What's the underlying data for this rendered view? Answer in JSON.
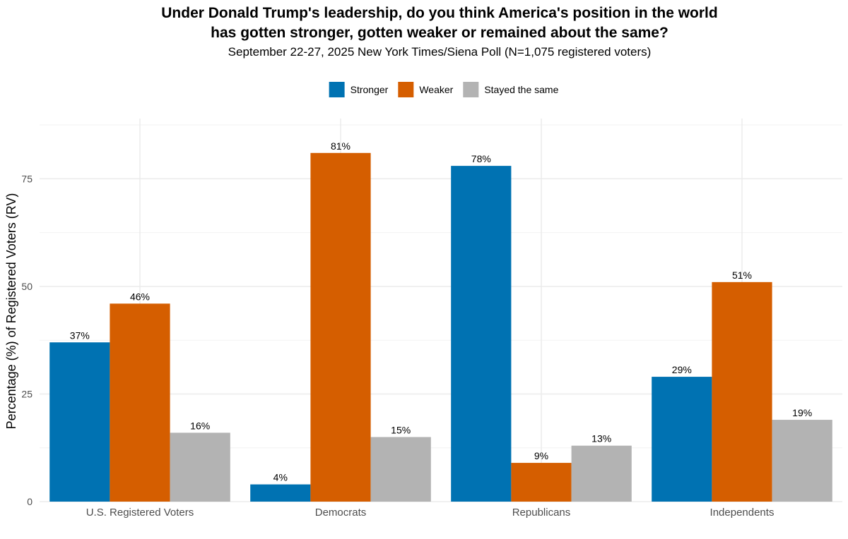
{
  "chart_data": {
    "type": "bar",
    "title_line1": "Under Donald Trump's leadership, do you think America's position in the world",
    "title_line2": "has gotten stronger, gotten weaker or remained about the same?",
    "subtitle": "September 22-27, 2025 New York Times/Siena Poll (N=1,075 registered voters)",
    "xlabel": "",
    "ylabel": "Percentage (%) of Registered Voters (RV)",
    "ylim": [
      0,
      89
    ],
    "yticks": [
      0,
      25,
      50,
      75
    ],
    "grid": true,
    "legend_position": "top",
    "categories": [
      "U.S. Registered Voters",
      "Democrats",
      "Republicans",
      "Independents"
    ],
    "series": [
      {
        "name": "Stronger",
        "color": "#0072B2",
        "values": [
          37,
          4,
          78,
          29
        ],
        "labels": [
          "37%",
          "4%",
          "78%",
          "29%"
        ]
      },
      {
        "name": "Weaker",
        "color": "#D55E00",
        "values": [
          46,
          81,
          9,
          51
        ],
        "labels": [
          "46%",
          "81%",
          "9%",
          "51%"
        ]
      },
      {
        "name": "Stayed the same",
        "color": "#B3B3B3",
        "values": [
          16,
          15,
          13,
          19
        ],
        "labels": [
          "16%",
          "15%",
          "13%",
          "19%"
        ]
      }
    ]
  }
}
